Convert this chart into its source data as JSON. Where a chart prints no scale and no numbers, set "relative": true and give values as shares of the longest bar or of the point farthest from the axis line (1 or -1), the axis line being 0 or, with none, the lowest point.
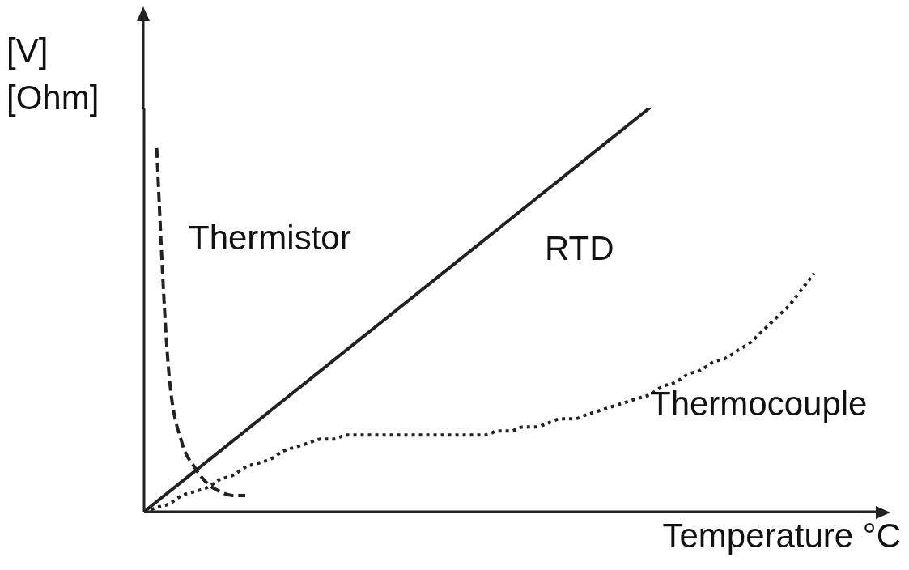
{
  "chart_data": {
    "type": "line",
    "relative": true,
    "xlabel": "Temperature °C",
    "ylabel": "[V]\n[Ohm]",
    "marker": "none",
    "grid": false,
    "legend": false,
    "categories": [
      null,
      null,
      null,
      null,
      null,
      null,
      null,
      null,
      null,
      null,
      null,
      null,
      null,
      null,
      null,
      null,
      null,
      null,
      null,
      null,
      null,
      null,
      null,
      null,
      null,
      null,
      null,
      null,
      null,
      null,
      null,
      null,
      null,
      null,
      null,
      null,
      null,
      null,
      null,
      null,
      null,
      null,
      null,
      null,
      null,
      null,
      null,
      null,
      null,
      null,
      null,
      null,
      null,
      null,
      null,
      null,
      null,
      null,
      null
    ],
    "series": [
      {
        "name": "Thermistor",
        "color": "#222222",
        "line_style": "dashed",
        "values": [
          null,
          0.9,
          0.33,
          0.17,
          0.11,
          0.07,
          0.05,
          0.04,
          0.04,
          null,
          null,
          null,
          null,
          null,
          null,
          null,
          null,
          null,
          null,
          null,
          null,
          null,
          null,
          null,
          null,
          null,
          null,
          null,
          null,
          null,
          null,
          null,
          null,
          null,
          null,
          null,
          null,
          null,
          null,
          null,
          null,
          null,
          null,
          null,
          null,
          null,
          null,
          null,
          null,
          null,
          null,
          null,
          null,
          null,
          null,
          null,
          null,
          null,
          null
        ]
      },
      {
        "name": "RTD",
        "color": "#222222",
        "line_style": "solid",
        "values": [
          0,
          0.025,
          0.05,
          0.075,
          0.1,
          0.125,
          0.15,
          0.175,
          0.2,
          0.225,
          0.25,
          0.275,
          0.3,
          0.325,
          0.35,
          0.375,
          0.4,
          0.425,
          0.45,
          0.475,
          0.5,
          0.525,
          0.55,
          0.575,
          0.6,
          0.625,
          0.65,
          0.675,
          0.7,
          0.725,
          0.75,
          0.775,
          0.8,
          0.825,
          0.85,
          0.875,
          0.9,
          0.925,
          0.95,
          0.975,
          1,
          null,
          null,
          null,
          null,
          null,
          null,
          null,
          null,
          null,
          null,
          null,
          null,
          null,
          null,
          null,
          null,
          null,
          null
        ]
      },
      {
        "name": "Thermocouple",
        "color": "#222222",
        "line_style": "dotted",
        "values": [
          0,
          0.01,
          0.02,
          0.04,
          0.05,
          0.06,
          0.08,
          0.09,
          0.11,
          0.12,
          0.13,
          0.15,
          0.16,
          0.17,
          0.18,
          0.18,
          0.19,
          0.19,
          0.19,
          0.19,
          0.19,
          0.19,
          0.19,
          0.19,
          0.19,
          0.19,
          0.19,
          0.19,
          0.2,
          0.2,
          0.21,
          0.21,
          0.22,
          0.23,
          0.23,
          0.24,
          0.25,
          0.26,
          0.27,
          0.28,
          0.29,
          0.31,
          0.32,
          0.34,
          0.35,
          0.37,
          0.38,
          0.4,
          0.42,
          0.45,
          0.48,
          0.51,
          0.55,
          0.59,
          null,
          null,
          null,
          null,
          null
        ]
      }
    ]
  }
}
